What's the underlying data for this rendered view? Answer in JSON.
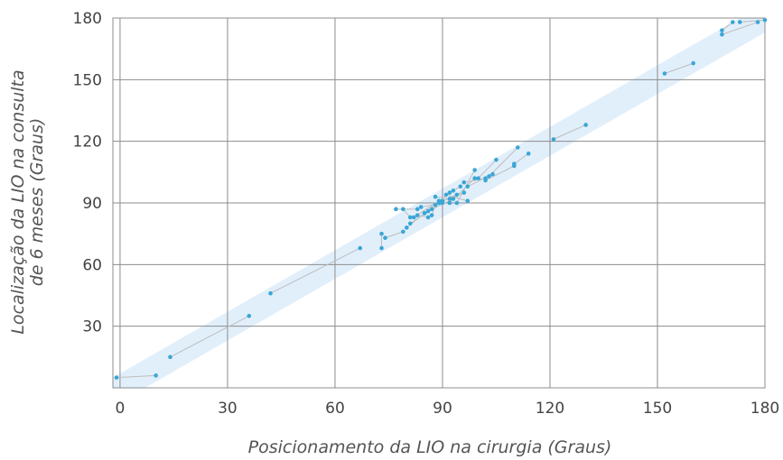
{
  "chart_data": {
    "type": "scatter",
    "title": "",
    "xlabel": "Posicionamento da LIO na cirurgia (Graus)",
    "ylabel_lines": [
      "Localização da LIO na consulta",
      "de 6 meses (Graus)"
    ],
    "xlim": [
      -2,
      180
    ],
    "ylim": [
      0,
      180
    ],
    "x_ticks": [
      "0",
      "30",
      "60",
      "90",
      "120",
      "150",
      "180"
    ],
    "y_ticks": [
      "30",
      "60",
      "90",
      "120",
      "150",
      "180"
    ],
    "grid": true,
    "band_halfwidth": 7,
    "colors": {
      "points": "#3aa6d6",
      "band": "#dcecfa",
      "lines": "#bdbdbd",
      "grid": "#8c8c8c"
    },
    "pairs": [
      [
        [
          -1,
          5
        ],
        [
          10,
          6
        ]
      ],
      [
        [
          14,
          15
        ],
        [
          36,
          35
        ]
      ],
      [
        [
          42,
          46
        ],
        [
          67,
          68
        ]
      ],
      [
        [
          73,
          68
        ],
        [
          73,
          75
        ]
      ],
      [
        [
          74,
          73
        ],
        [
          79,
          76
        ]
      ],
      [
        [
          77,
          87
        ],
        [
          83,
          87
        ]
      ],
      [
        [
          79,
          87
        ],
        [
          81,
          83
        ]
      ],
      [
        [
          80,
          78
        ],
        [
          85,
          85
        ]
      ],
      [
        [
          81,
          80
        ],
        [
          87,
          87
        ]
      ],
      [
        [
          82,
          83
        ],
        [
          89,
          91
        ]
      ],
      [
        [
          83,
          84
        ],
        [
          86,
          83
        ]
      ],
      [
        [
          84,
          88
        ],
        [
          90,
          90
        ]
      ],
      [
        [
          85,
          85
        ],
        [
          92,
          95
        ]
      ],
      [
        [
          86,
          86
        ],
        [
          93,
          92
        ]
      ],
      [
        [
          87,
          84
        ],
        [
          88,
          89
        ]
      ],
      [
        [
          88,
          93
        ],
        [
          92,
          92
        ]
      ],
      [
        [
          89,
          90
        ],
        [
          94,
          94
        ]
      ],
      [
        [
          90,
          91
        ],
        [
          96,
          95
        ]
      ],
      [
        [
          91,
          94
        ],
        [
          97,
          91
        ]
      ],
      [
        [
          92,
          90
        ],
        [
          99,
          102
        ]
      ],
      [
        [
          93,
          96
        ],
        [
          95,
          98
        ]
      ],
      [
        [
          94,
          90
        ],
        [
          99,
          106
        ]
      ],
      [
        [
          96,
          100
        ],
        [
          102,
          102
        ]
      ],
      [
        [
          97,
          98
        ],
        [
          104,
          104
        ]
      ],
      [
        [
          100,
          102
        ],
        [
          105,
          111
        ]
      ],
      [
        [
          102,
          101
        ],
        [
          110,
          108
        ]
      ],
      [
        [
          103,
          103
        ],
        [
          111,
          117
        ]
      ],
      [
        [
          110,
          109
        ],
        [
          114,
          114
        ]
      ],
      [
        [
          121,
          121
        ],
        [
          130,
          128
        ]
      ],
      [
        [
          152,
          153
        ],
        [
          160,
          158
        ]
      ],
      [
        [
          168,
          172
        ],
        [
          178,
          178
        ]
      ],
      [
        [
          168,
          174
        ],
        [
          171,
          178
        ]
      ],
      [
        [
          173,
          178
        ],
        [
          180,
          179
        ]
      ]
    ]
  }
}
